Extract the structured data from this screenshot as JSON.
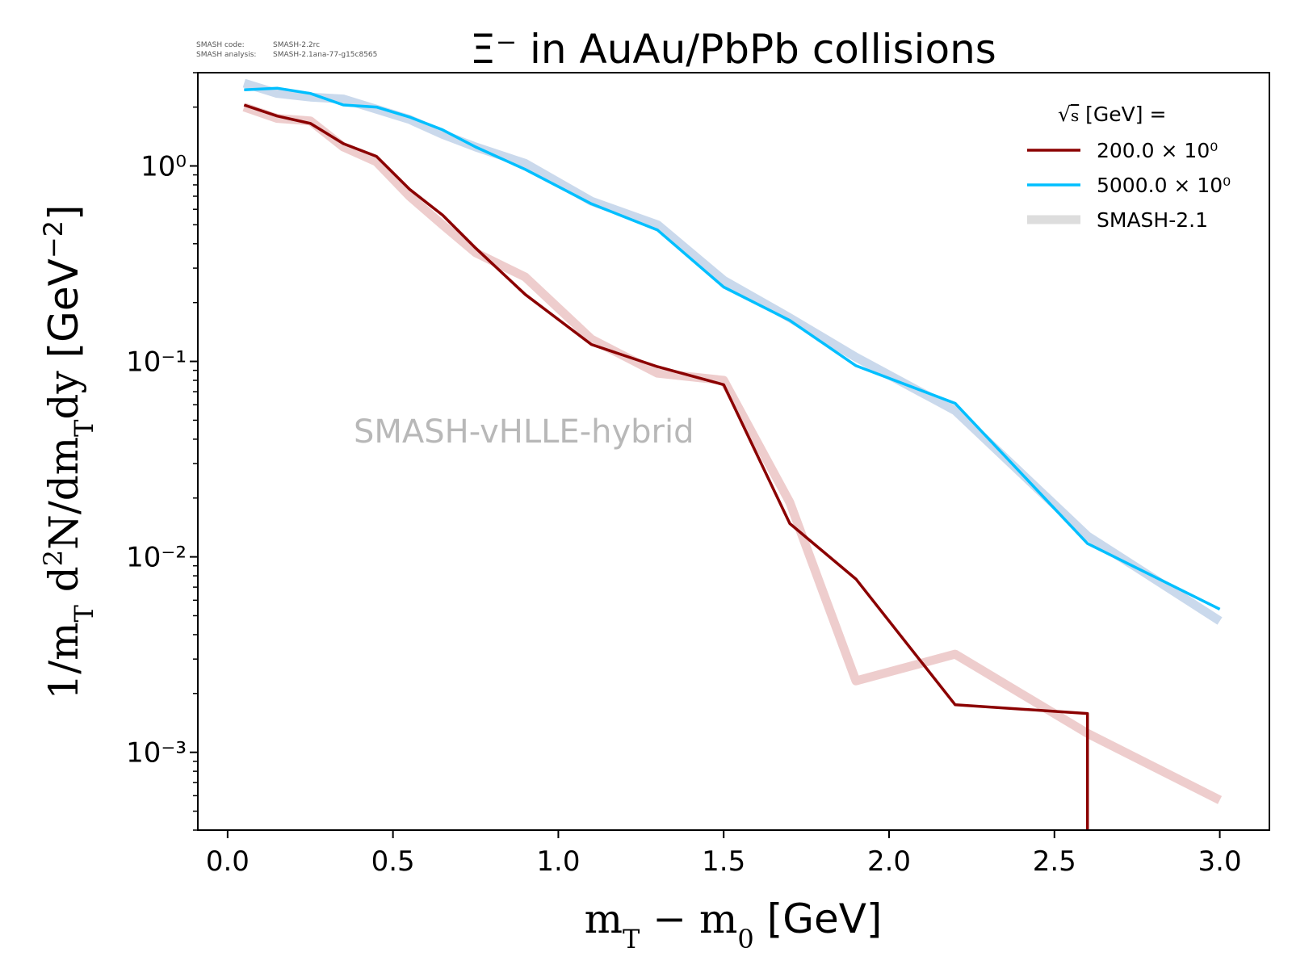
{
  "meta": {
    "code_label": "SMASH code:",
    "code_value": "SMASH-2.2rc",
    "analysis_label": "SMASH analysis:",
    "analysis_value": "SMASH-2.1ana-77-g15c8565"
  },
  "watermark": "SMASH-vHLLE-hybrid",
  "chart_data": {
    "type": "line",
    "title": "Ξ⁻ in AuAu/PbPb collisions",
    "xlabel": "m_T − m_0 [GeV]",
    "ylabel": "1/m_T d²N/dm_Tdy [GeV⁻²]",
    "xlim": [
      -0.09,
      3.15
    ],
    "ylim": [
      0.0004,
      3.0
    ],
    "yscale": "log",
    "grid": false,
    "legend_placement": "top-right",
    "legend_title": "√s [GeV] =",
    "x_ticks": [
      "0.0",
      "0.5",
      "1.0",
      "1.5",
      "2.0",
      "2.5",
      "3.0"
    ],
    "y_ticks": [
      "10⁰",
      "10⁻¹",
      "10⁻²",
      "10⁻³"
    ],
    "series": [
      {
        "name": "200.0 × 10⁰",
        "color": "#8b0000",
        "role": "current",
        "x": [
          0.05,
          0.15,
          0.25,
          0.35,
          0.45,
          0.55,
          0.65,
          0.75,
          0.9,
          1.1,
          1.3,
          1.5,
          1.7,
          1.9,
          2.2,
          2.6,
          2.6
        ],
        "y": [
          2.05,
          1.8,
          1.65,
          1.3,
          1.12,
          0.76,
          0.56,
          0.38,
          0.22,
          0.122,
          0.094,
          0.076,
          0.0148,
          0.0077,
          0.00175,
          0.00158,
          0.0004
        ]
      },
      {
        "name": "5000.0 × 10⁰",
        "color": "#00bfff",
        "role": "current",
        "x": [
          0.05,
          0.15,
          0.25,
          0.35,
          0.45,
          0.55,
          0.65,
          0.75,
          0.9,
          1.1,
          1.3,
          1.5,
          1.7,
          1.9,
          2.2,
          2.6,
          3.0
        ],
        "y": [
          2.45,
          2.5,
          2.35,
          2.05,
          2.0,
          1.78,
          1.53,
          1.25,
          0.96,
          0.64,
          0.47,
          0.24,
          0.162,
          0.095,
          0.061,
          0.0117,
          0.0054
        ]
      },
      {
        "name": "SMASH-2.1",
        "color": "#e8bcbc",
        "role": "reference",
        "x": [
          0.05,
          0.15,
          0.25,
          0.35,
          0.45,
          0.55,
          0.65,
          0.75,
          0.9,
          1.1,
          1.3,
          1.5,
          1.7,
          1.9,
          2.2,
          2.6,
          3.0
        ],
        "y": [
          2.0,
          1.75,
          1.7,
          1.25,
          1.05,
          0.7,
          0.5,
          0.36,
          0.27,
          0.13,
          0.087,
          0.08,
          0.019,
          0.00232,
          0.00318,
          0.00125,
          0.00057
        ]
      },
      {
        "name": "SMASH-2.1",
        "color": "#b8cce6",
        "role": "reference",
        "x": [
          0.05,
          0.15,
          0.25,
          0.35,
          0.45,
          0.55,
          0.65,
          0.75,
          0.9,
          1.1,
          1.3,
          1.5,
          1.7,
          1.9,
          2.2,
          2.6,
          3.0
        ],
        "y": [
          2.65,
          2.35,
          2.25,
          2.2,
          1.95,
          1.73,
          1.45,
          1.25,
          1.03,
          0.66,
          0.5,
          0.26,
          0.167,
          0.105,
          0.056,
          0.0128,
          0.0047
        ]
      }
    ],
    "legend": [
      {
        "label": "200.0 × 10⁰",
        "color": "#8b0000"
      },
      {
        "label": "5000.0 × 10⁰",
        "color": "#00bfff"
      },
      {
        "label": "SMASH-2.1",
        "color": "#dddddd"
      }
    ]
  }
}
